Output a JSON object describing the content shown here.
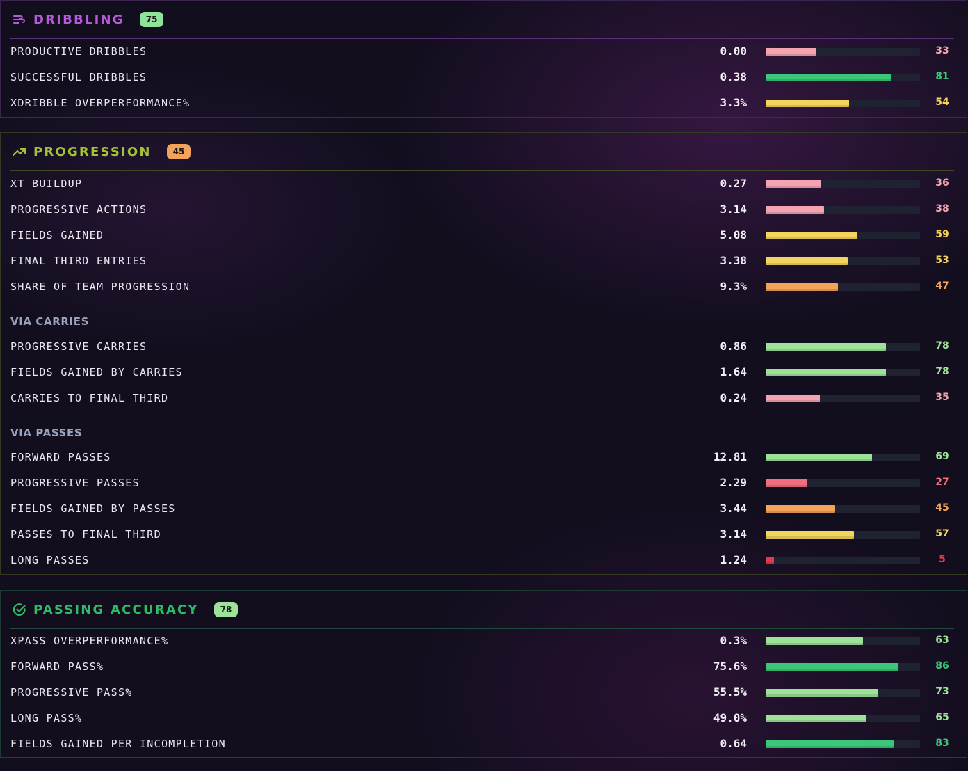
{
  "colors": {
    "dribbling": "#b45bd9",
    "progression": "#a6c234",
    "accuracy": "#2dbd66",
    "tier_high": "#3ac777",
    "tier_good": "#9ee29a",
    "tier_mid": "#f3d55e",
    "tier_low": "#f3a25a",
    "tier_poor": "#f3a3b1",
    "tier_bad": "#ef6f7e",
    "tier_worst": "#e03a47"
  },
  "sections": {
    "dribbling": {
      "title": "DRIBBLING",
      "badge": "75",
      "icon": "dribble-lines-icon",
      "rows": [
        {
          "label": "PRODUCTIVE DRIBBLES",
          "value": "0.00",
          "percentile": 33
        },
        {
          "label": "SUCCESSFUL DRIBBLES",
          "value": "0.38",
          "percentile": 81
        },
        {
          "label": "XDRIBBLE OVERPERFORMANCE%",
          "value": "3.3%",
          "percentile": 54
        }
      ]
    },
    "progression": {
      "title": "PROGRESSION",
      "badge": "45",
      "icon": "trending-up-icon",
      "rows": [
        {
          "label": "XT BUILDUP",
          "value": "0.27",
          "percentile": 36
        },
        {
          "label": "PROGRESSIVE ACTIONS",
          "value": "3.14",
          "percentile": 38
        },
        {
          "label": "FIELDS GAINED",
          "value": "5.08",
          "percentile": 59
        },
        {
          "label": "FINAL THIRD ENTRIES",
          "value": "3.38",
          "percentile": 53
        },
        {
          "label": "SHARE OF TEAM PROGRESSION",
          "value": "9.3%",
          "percentile": 47
        }
      ],
      "carries_heading": "VIA CARRIES",
      "carries": [
        {
          "label": "PROGRESSIVE CARRIES",
          "value": "0.86",
          "percentile": 78
        },
        {
          "label": "FIELDS GAINED BY CARRIES",
          "value": "1.64",
          "percentile": 78
        },
        {
          "label": "CARRIES TO FINAL THIRD",
          "value": "0.24",
          "percentile": 35
        }
      ],
      "passes_heading": "VIA PASSES",
      "passes": [
        {
          "label": "FORWARD PASSES",
          "value": "12.81",
          "percentile": 69
        },
        {
          "label": "PROGRESSIVE PASSES",
          "value": "2.29",
          "percentile": 27
        },
        {
          "label": "FIELDS GAINED BY PASSES",
          "value": "3.44",
          "percentile": 45
        },
        {
          "label": "PASSES TO FINAL THIRD",
          "value": "3.14",
          "percentile": 57
        },
        {
          "label": "LONG PASSES",
          "value": "1.24",
          "percentile": 5
        }
      ]
    },
    "accuracy": {
      "title": "PASSING ACCURACY",
      "badge": "78",
      "icon": "check-circle-icon",
      "rows": [
        {
          "label": "XPASS OVERPERFORMANCE%",
          "value": "0.3%",
          "percentile": 63
        },
        {
          "label": "FORWARD PASS%",
          "value": "75.6%",
          "percentile": 86
        },
        {
          "label": "PROGRESSIVE PASS%",
          "value": "55.5%",
          "percentile": 73
        },
        {
          "label": "LONG PASS%",
          "value": "49.0%",
          "percentile": 65
        },
        {
          "label": "FIELDS GAINED PER INCOMPLETION",
          "value": "0.64",
          "percentile": 83
        }
      ]
    }
  }
}
